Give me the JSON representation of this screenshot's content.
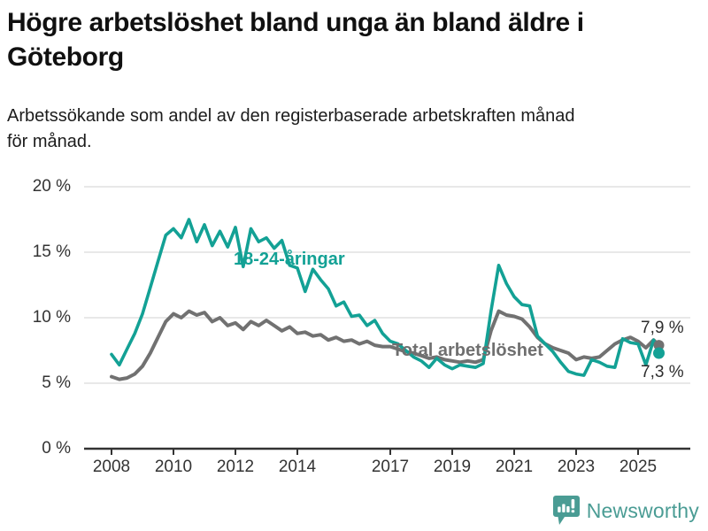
{
  "header": {
    "title_lines": [
      "Högre arbetslöshet bland unga än bland äldre i",
      "Göteborg"
    ],
    "subtitle_lines": [
      "Arbetssökande som andel av den registerbaserade arbetskraften månad",
      "för månad."
    ]
  },
  "chart_data": {
    "type": "line",
    "unit": "%",
    "x_description": "tid (månadsvärden, angivna som decimalår)",
    "ylim": [
      0,
      20
    ],
    "grid": "horizontal",
    "legend": "inline-labels",
    "y_ticks": [
      {
        "value": 20,
        "label": "20 %"
      },
      {
        "value": 15,
        "label": "15 %"
      },
      {
        "value": 10,
        "label": "10 %"
      },
      {
        "value": 5,
        "label": "5 %"
      },
      {
        "value": 0,
        "label": "0 %"
      }
    ],
    "x_ticks": [
      {
        "value": 2008,
        "label": "2008"
      },
      {
        "value": 2010,
        "label": "2010"
      },
      {
        "value": 2012,
        "label": "2012"
      },
      {
        "value": 2014,
        "label": "2014"
      },
      {
        "value": 2017,
        "label": "2017"
      },
      {
        "value": 2019,
        "label": "2019"
      },
      {
        "value": 2021,
        "label": "2021"
      },
      {
        "value": 2023,
        "label": "2023"
      },
      {
        "value": 2025,
        "label": "2025"
      }
    ],
    "x": [
      2008.0,
      2008.25,
      2008.5,
      2008.75,
      2009.0,
      2009.25,
      2009.5,
      2009.75,
      2010.0,
      2010.25,
      2010.5,
      2010.75,
      2011.0,
      2011.25,
      2011.5,
      2011.75,
      2012.0,
      2012.25,
      2012.5,
      2012.75,
      2013.0,
      2013.25,
      2013.5,
      2013.75,
      2014.0,
      2014.25,
      2014.5,
      2014.75,
      2015.0,
      2015.25,
      2015.5,
      2015.75,
      2016.0,
      2016.25,
      2016.5,
      2016.75,
      2017.0,
      2017.25,
      2017.5,
      2017.75,
      2018.0,
      2018.25,
      2018.5,
      2018.75,
      2019.0,
      2019.25,
      2019.5,
      2019.75,
      2020.0,
      2020.25,
      2020.5,
      2020.75,
      2021.0,
      2021.25,
      2021.5,
      2021.75,
      2022.0,
      2022.25,
      2022.5,
      2022.75,
      2023.0,
      2023.25,
      2023.5,
      2023.75,
      2024.0,
      2024.25,
      2024.5,
      2024.75,
      2025.0,
      2025.25,
      2025.5,
      2025.67
    ],
    "series": [
      {
        "name": "18-24-åringar",
        "color": "#13a195",
        "width": 3.6,
        "dot_r": 6.5,
        "end_label": "7,3 %",
        "values": [
          7.2,
          6.4,
          7.6,
          8.8,
          10.3,
          12.3,
          14.3,
          16.3,
          16.8,
          16.1,
          17.5,
          15.8,
          17.1,
          15.5,
          16.6,
          15.4,
          16.9,
          13.9,
          16.8,
          15.8,
          16.1,
          15.3,
          15.9,
          14.0,
          13.8,
          12.0,
          13.7,
          12.9,
          12.2,
          10.9,
          11.2,
          10.1,
          10.2,
          9.4,
          9.8,
          8.8,
          8.2,
          8.0,
          7.5,
          7.0,
          6.7,
          6.2,
          6.9,
          6.4,
          6.1,
          6.4,
          6.3,
          6.2,
          6.5,
          10.5,
          14.0,
          12.6,
          11.6,
          11.0,
          10.9,
          8.6,
          8.0,
          7.4,
          6.6,
          5.9,
          5.7,
          5.6,
          6.8,
          6.6,
          6.3,
          6.2,
          8.4,
          8.1,
          8.0,
          6.4,
          8.3,
          7.3
        ]
      },
      {
        "name": "Total arbetslöshet",
        "color": "#717171",
        "width": 4.0,
        "dot_r": 6.0,
        "end_label": "7,9 %",
        "values": [
          5.5,
          5.3,
          5.4,
          5.7,
          6.3,
          7.3,
          8.5,
          9.7,
          10.3,
          10.0,
          10.5,
          10.2,
          10.4,
          9.7,
          10.0,
          9.4,
          9.6,
          9.1,
          9.7,
          9.4,
          9.8,
          9.4,
          9.0,
          9.3,
          8.8,
          8.9,
          8.6,
          8.7,
          8.3,
          8.5,
          8.2,
          8.3,
          8.0,
          8.2,
          7.9,
          7.8,
          7.8,
          7.6,
          7.4,
          7.3,
          7.1,
          6.9,
          7.0,
          6.8,
          6.7,
          6.6,
          6.7,
          6.6,
          6.8,
          9.0,
          10.5,
          10.2,
          10.1,
          9.9,
          9.3,
          8.5,
          8.0,
          7.7,
          7.5,
          7.3,
          6.8,
          7.0,
          6.9,
          7.0,
          7.5,
          8.0,
          8.3,
          8.5,
          8.2,
          7.7,
          8.3,
          7.9
        ]
      }
    ]
  },
  "footer": {
    "brand": "Newsworthy",
    "brand_color": "#4a9c94"
  },
  "colors": {
    "accent_teal": "#13a195",
    "line_gray": "#717171",
    "brand_teal": "#4a9c94",
    "axis_text": "#333333",
    "axis_line": "#333333",
    "grid": "#dadada"
  }
}
